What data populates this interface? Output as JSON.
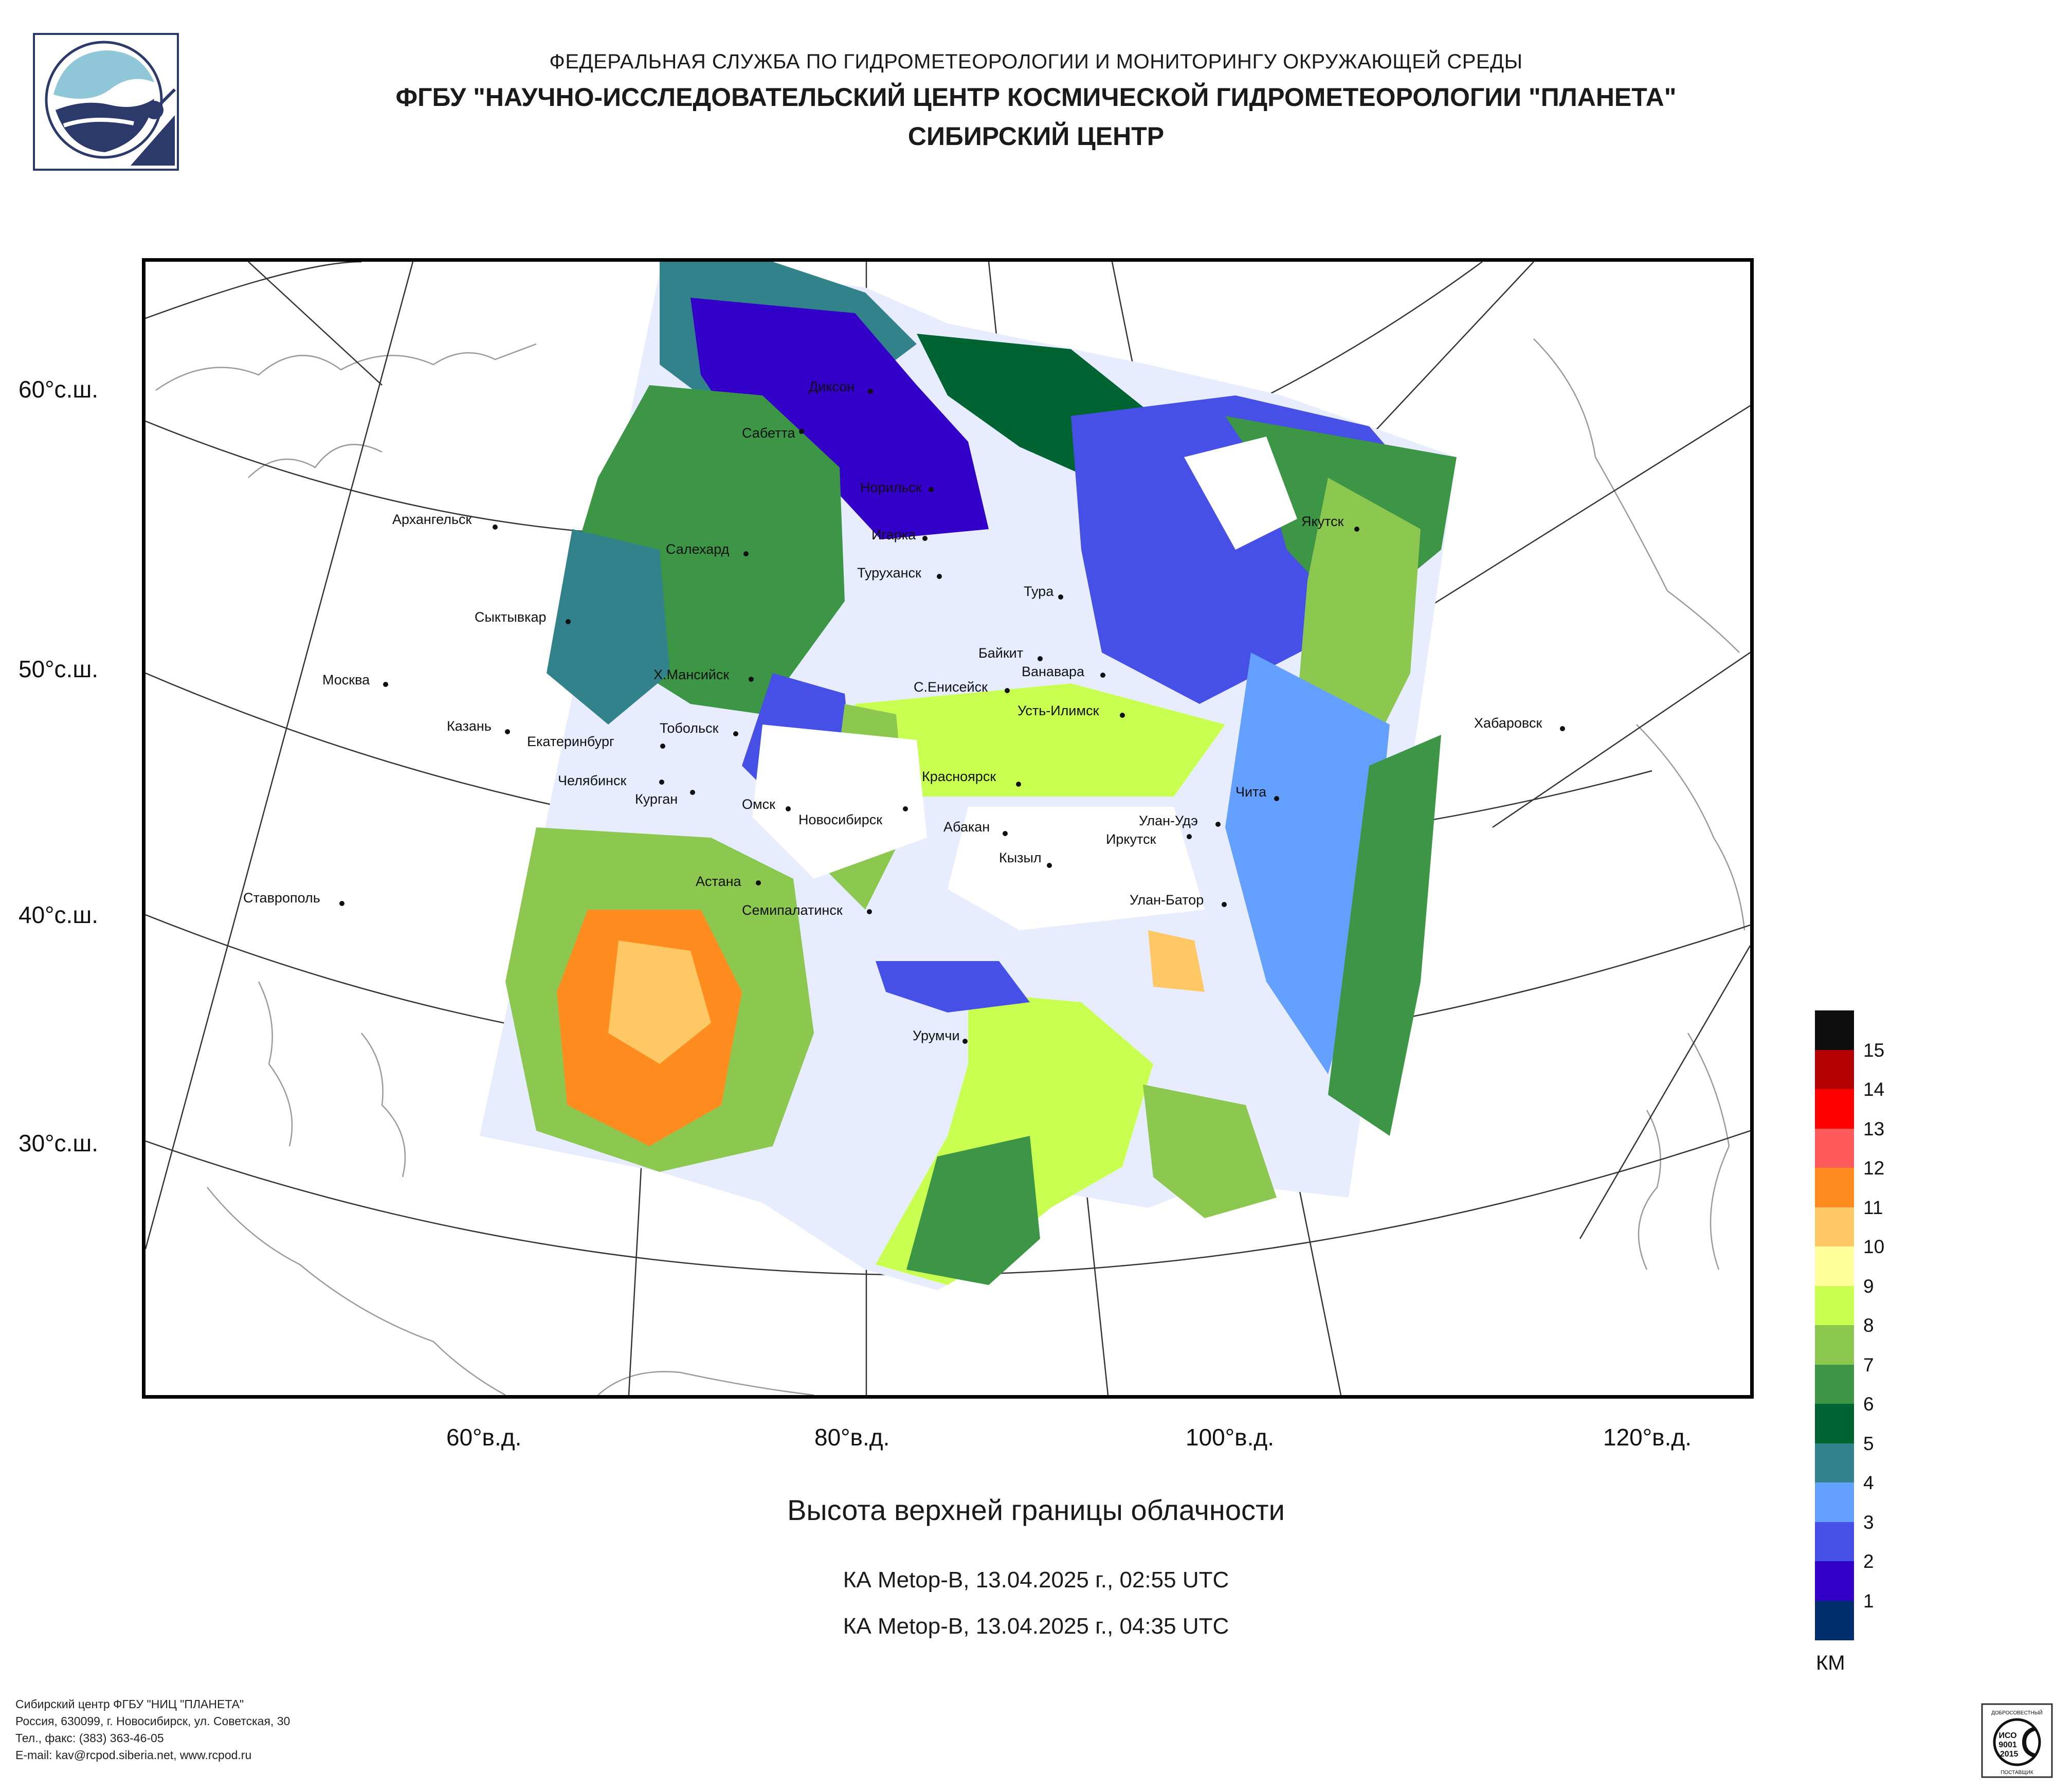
{
  "header": {
    "line1": "ФЕДЕРАЛЬНАЯ СЛУЖБА ПО ГИДРОМЕТЕОРОЛОГИИ И МОНИТОРИНГУ ОКРУЖАЮЩЕЙ СРЕДЫ",
    "line2": "ФГБУ \"НАУЧНО-ИССЛЕДОВАТЕЛЬСКИЙ ЦЕНТР КОСМИЧЕСКОЙ ГИДРОМЕТЕОРОЛОГИИ \"ПЛАНЕТА\"",
    "line3": "СИБИРСКИЙ ЦЕНТР"
  },
  "map": {
    "lat_labels": [
      "60°с.ш.",
      "50°с.ш.",
      "40°с.ш.",
      "30°с.ш."
    ],
    "lon_labels": [
      "60°в.д.",
      "80°в.д.",
      "100°в.д.",
      "120°в.д."
    ],
    "cities": [
      "Диксон",
      "Сабетта",
      "Норильск",
      "Игарка",
      "Туруханск",
      "Тура",
      "Салехард",
      "Архангельск",
      "Сыктывкар",
      "Якутск",
      "Москва",
      "Х.Мансийск",
      "Байкит",
      "Ванавара",
      "С.Енисейск",
      "Усть-Илимск",
      "Хабаровск",
      "Казань",
      "Екатеринбург",
      "Тобольск",
      "Челябинск",
      "Курган",
      "Омск",
      "Новосибирск",
      "Красноярск",
      "Абакан",
      "Иркутск",
      "Улан-Удэ",
      "Чита",
      "Кызыл",
      "Астана",
      "Семипалатинск",
      "Улан-Батор",
      "Ставрополь",
      "Урумчи"
    ]
  },
  "title": "Высота верхней границы облачности",
  "passes": [
    "КА Metop-B, 13.04.2025 г., 02:55 UTC",
    "КА Metop-B, 13.04.2025 г., 04:35 UTC"
  ],
  "legend": {
    "unit": "КМ",
    "colors": [
      "#0e0e0e",
      "#b40000",
      "#ff0000",
      "#ff5a5a",
      "#ff8c1e",
      "#ffc864",
      "#ffff9b",
      "#c8ff50",
      "#8cc850",
      "#3c9646",
      "#006432",
      "#32828c",
      "#64a0ff",
      "#4650e6",
      "#3200c8",
      "#002d6e"
    ],
    "labels": [
      "15",
      "14",
      "13",
      "12",
      "11",
      "10",
      "9",
      "8",
      "7",
      "6",
      "5",
      "4",
      "3",
      "2",
      "1"
    ]
  },
  "footer": [
    "Сибирский центр ФГБУ \"НИЦ \"ПЛАНЕТА\"",
    "Россия, 630099, г. Новосибирск, ул. Советская, 30",
    "Тел., факс: (383) 363-46-05",
    "E-mail: kav@rcpod.siberia.net, www.rcpod.ru"
  ],
  "iso_badge": {
    "top": "ДОБРОСОВЕСТНЫЙ",
    "line1": "ИСО",
    "line2": "9001",
    "line3": "-2015",
    "bottom": "ПОСТАВЩИК"
  }
}
